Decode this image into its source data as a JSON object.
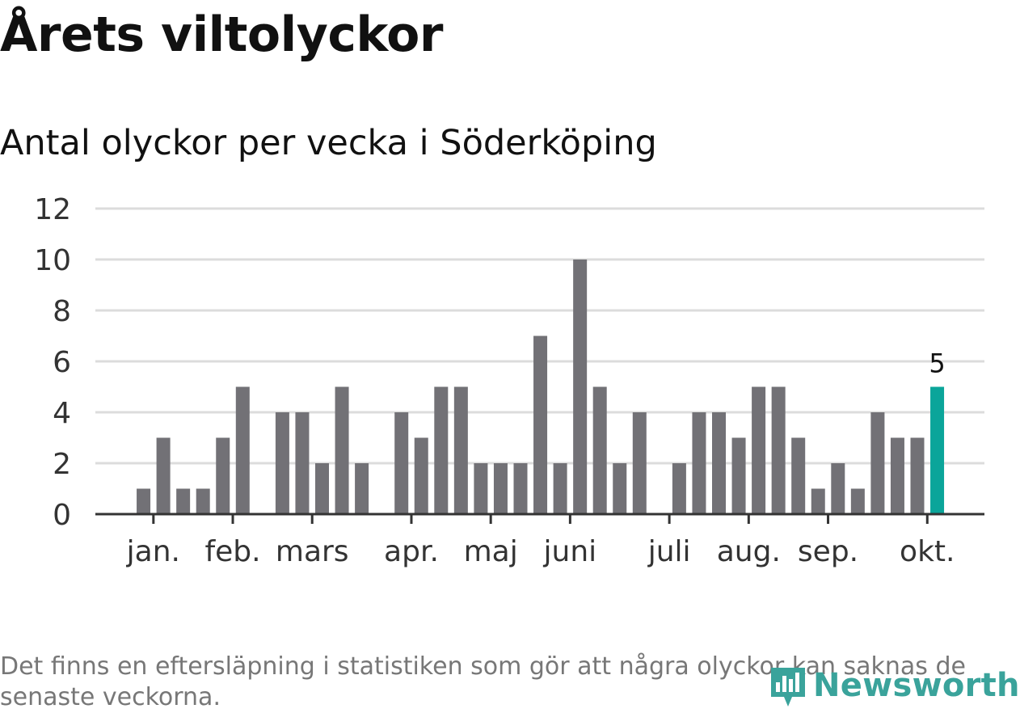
{
  "title": "Årets viltolyckor",
  "chart_data": {
    "type": "bar",
    "title": "Årets viltolyckor",
    "subtitle": "Antal olyckor per vecka i Söderköping",
    "ylim": [
      0,
      12
    ],
    "yticks": [
      0,
      2,
      4,
      6,
      8,
      10,
      12
    ],
    "grid": true,
    "weeks": [
      1,
      2,
      3,
      4,
      5,
      6,
      7,
      8,
      9,
      10,
      11,
      12,
      13,
      14,
      15,
      16,
      17,
      18,
      19,
      20,
      21,
      22,
      23,
      24,
      25,
      26,
      27,
      28,
      29,
      30,
      31,
      32,
      33,
      34,
      35,
      36,
      37,
      38,
      39,
      40,
      41,
      42
    ],
    "values": [
      0,
      1,
      3,
      1,
      1,
      3,
      5,
      0,
      4,
      4,
      2,
      5,
      2,
      0,
      4,
      3,
      5,
      5,
      2,
      2,
      2,
      7,
      2,
      10,
      5,
      2,
      4,
      0,
      2,
      4,
      4,
      3,
      5,
      5,
      3,
      1,
      2,
      1,
      4,
      3,
      3,
      5
    ],
    "month_labels": [
      {
        "label": "jan.",
        "week": 2.5
      },
      {
        "label": "feb.",
        "week": 6.5
      },
      {
        "label": "mars",
        "week": 10.5
      },
      {
        "label": "apr.",
        "week": 15.5
      },
      {
        "label": "maj",
        "week": 19.5
      },
      {
        "label": "juni",
        "week": 23.5
      },
      {
        "label": "juli",
        "week": 28.5
      },
      {
        "label": "aug.",
        "week": 32.5
      },
      {
        "label": "sep.",
        "week": 36.5
      },
      {
        "label": "okt.",
        "week": 41.5
      }
    ],
    "highlight_last": true,
    "highlight_label": "5",
    "colors": {
      "bar": "#727176",
      "highlight": "#0ba59a",
      "grid": "#dcdcdc",
      "axis": "#333333"
    }
  },
  "footnote": "Det finns en eftersläpning i statistiken som gör att några olyckor kan saknas de senaste veckorna.",
  "brand": {
    "name": "Newsworthy",
    "icon": "newsworthy-logo-icon",
    "color": "#3aa39b"
  }
}
